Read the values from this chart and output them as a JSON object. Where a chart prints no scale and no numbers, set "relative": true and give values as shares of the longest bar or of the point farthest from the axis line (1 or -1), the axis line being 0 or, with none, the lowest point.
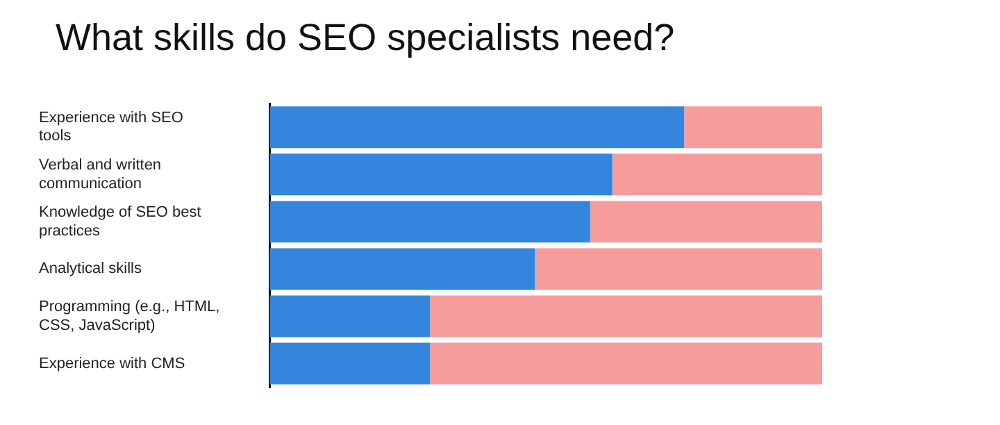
{
  "chart_data": {
    "type": "bar",
    "title": "What skills do SEO specialists need?",
    "orientation": "horizontal",
    "stacked": true,
    "relative": true,
    "categories": [
      "Experience with SEO tools",
      "Verbal and written communication",
      "Knowledge of SEO best practices",
      "Analytical skills",
      "Programming (e.g., HTML, CSS, JavaScript)",
      "Experience with CMS"
    ],
    "series": [
      {
        "color": "#3486dc",
        "values": [
          0.75,
          0.62,
          0.58,
          0.48,
          0.29,
          0.29
        ]
      },
      {
        "color": "#f79c9c",
        "values": [
          0.25,
          0.38,
          0.42,
          0.52,
          0.71,
          0.71
        ]
      }
    ],
    "legend": false
  }
}
